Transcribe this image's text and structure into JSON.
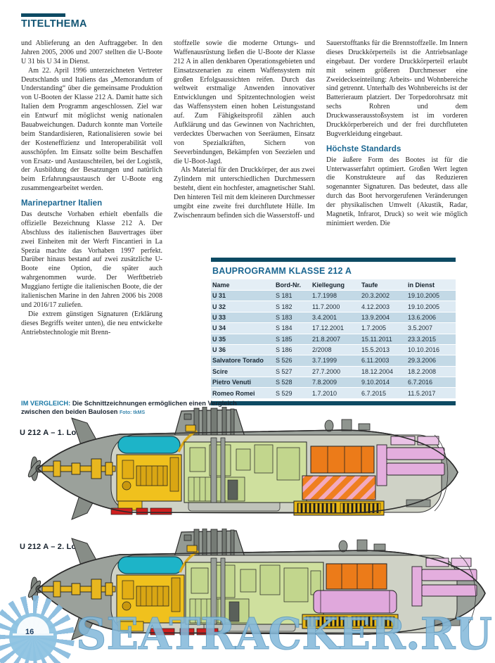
{
  "header": {
    "section_label": "TITELTHEMA"
  },
  "page_number": "16",
  "col1": {
    "p1": "und Ablieferung an den Auftraggeber. In den Jahren 2005, 2006 und 2007 stellten die U-Boote U 31 bis U 34 in Dienst.",
    "p2": "Am 22. April 1996 unterzeichneten Vertreter Deutschlands und Italiens das „Memorandum of Understanding“ über die gemeinsame Produktion von U-Booten der Klasse 212 A. Damit hatte sich Italien dem Programm angeschlossen. Ziel war ein Entwurf mit möglichst wenig nationalen Bauabweichungen. Dadurch konnte man Vorteile beim Standardisieren, Rationalisieren sowie bei der Kosteneffizienz und Interoperabilität voll ausschöpfen. Im Einsatz sollte beim Beschaffen von Ersatz- und Austauschteilen, bei der Logistik, der Ausbildung der Besatzungen und natürlich beim Erfahrungsaustausch der U-Boote eng zusammengearbeitet werden.",
    "h1": "Marinepartner Italien",
    "p3": "Das deutsche Vorhaben erhielt ebenfalls die offizielle Bezeichnung Klasse 212 A. Der Abschluss des italienischen Bauvertrages über zwei Einheiten mit der Werft Fincantieri in La Spezia machte das Vorhaben 1997 perfekt. Darüber hinaus bestand auf zwei zusätzliche U-Boote eine Option, die später auch wahrgenommen wurde. Der Werftbetrieb Muggiano fertigte die italienischen Boote, die der italienischen Marine in den Jahren 2006 bis 2008 und 2016/17 zuliefen.",
    "p4": "Die extrem günstigen Signaturen (Erklärung dieses Begriffs weiter unten), die neu entwickelte Antriebstechnologie mit Brenn-"
  },
  "col2": {
    "p1": "stoffzelle sowie die moderne Ortungs- und Waffenausrüstung ließen die U-Boote der Klasse 212 A in allen denkbaren Operationsgebieten und Einsatzszenarien zu einem Waffensystem mit großen Erfolgsaussichten reifen. Durch das weltweit erstmalige Anwenden innovativer Entwicklungen und Spitzentechnologien weist das Waffensystem einen hohen Leistungsstand auf. Zum Fähigkeitsprofil zählen auch Aufklärung und das Gewinnen von Nachrichten, verdecktes Überwachen von Seeräumen, Einsatz von Spezialkräften, Sichern von Seeverbindungen, Bekämpfen von Seezielen und die U-Boot-Jagd.",
    "p2": "Als Material für den Druckkörper, der aus zwei Zylindern mit unterschiedlichen Durchmessern besteht, dient ein hochfester, amagnetischer Stahl. Den hinteren Teil mit dem kleineren Durchmesser umgibt eine zweite frei durchflutete Hülle. Im Zwischenraum befinden sich die Wasserstoff- und"
  },
  "col3": {
    "p1": "Sauerstofftanks für die Brennstoffzelle. Im Innern dieses Druckkörperteils ist die Antriebsanlage eingebaut. Der vordere Druckkörperteil erlaubt mit seinem größeren Durchmesser eine Zweideckseinteilung: Arbeits- und Wohnbereiche sind getrennt. Unterhalb des Wohnbereichs ist der Batterieraum platziert. Der Torpedorohrsatz mit sechs Rohren und dem Druckwasserausstoßsystem ist im vorderen Druckkörperbereich und der frei durchfluteten Bugverkleidung eingebaut.",
    "h1": "Höchste Standards",
    "p2": "Die äußere Form des Bootes ist für die Unterwasserfahrt optimiert. Großen Wert legten die Konstrukteure auf das Reduzieren sogenannter Signaturen. Das bedeutet, dass alle durch das Boot hervorgerufenen Veränderungen der physikalischen Umwelt (Akustik, Radar, Magnetik, Infrarot, Druck) so weit wie möglich minimiert werden. Die"
  },
  "table": {
    "title": "BAUPROGRAMM KLASSE 212 A",
    "columns": [
      "Name",
      "Bord-Nr.",
      "Kiellegung",
      "Taufe",
      "in Dienst"
    ],
    "rows": [
      [
        "U 31",
        "S 181",
        "1.7.1998",
        "20.3.2002",
        "19.10.2005"
      ],
      [
        "U 32",
        "S 182",
        "11.7.2000",
        "4.12.2003",
        "19.10.2005"
      ],
      [
        "U 33",
        "S 183",
        "3.4.2001",
        "13.9.2004",
        "13.6.2006"
      ],
      [
        "U 34",
        "S 184",
        "17.12.2001",
        "1.7.2005",
        "3.5.2007"
      ],
      [
        "U 35",
        "S 185",
        "21.8.2007",
        "15.11.2011",
        "23.3.2015"
      ],
      [
        "U 36",
        "S 186",
        "2/2008",
        "15.5.2013",
        "10.10.2016"
      ],
      [
        "Salvatore Torado",
        "S 526",
        "3.7.1999",
        "6.11.2003",
        "29.3.2006"
      ],
      [
        "Scire",
        "S 527",
        "27.7.2000",
        "18.12.2004",
        "18.2.2008"
      ],
      [
        "Pietro Venuti",
        "S 528",
        "7.8.2009",
        "9.10.2014",
        "6.7.2016"
      ],
      [
        "Romeo Romei",
        "S 529",
        "1.7.2010",
        "6.7.2015",
        "11.5.2017"
      ]
    ]
  },
  "caption": {
    "lead": "IM VERGLEICH:",
    "text": " Die Schnittzeichnungen ermöglichen einen Vergleich zwischen den beiden Baulosen ",
    "credit": "Foto: tkMS"
  },
  "diagrams": {
    "heading_1": "U 212 A – 1. Los",
    "heading_2": "U 212 A – 2. Los",
    "palette": {
      "accent_teal": "#0d4a63",
      "heading_blue": "#1a6691",
      "table_row_dark": "#c3d9e6",
      "table_row_light": "#ddeaf3",
      "hull_gray": "#9ba19b",
      "tank_cyan": "#1db4c8",
      "machinery_yellow": "#f0c11d",
      "compartment_green": "#cfe09e",
      "equipment_orange": "#ec7b19",
      "hatch_pink": "#f2aabf",
      "torpedo_pink": "#e4aede",
      "keel_red": "#cf1f1f",
      "watermark_blue": "#85b9db"
    }
  },
  "watermark": {
    "text": "SEATRACKER.RU"
  }
}
